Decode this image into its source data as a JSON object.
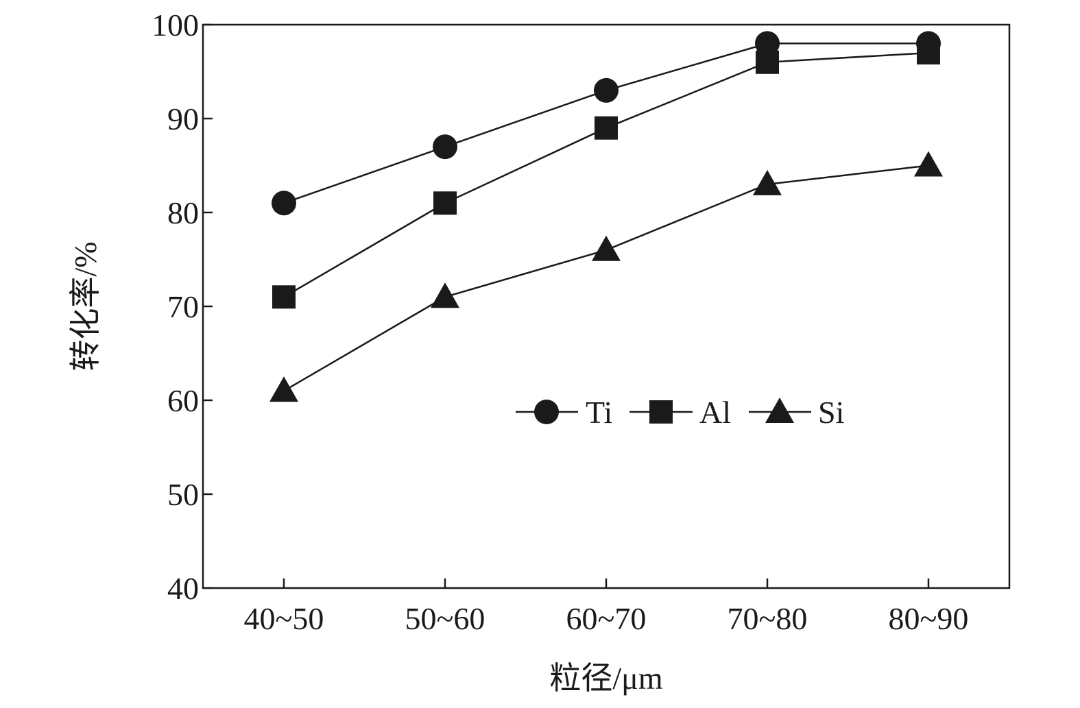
{
  "chart_data": {
    "type": "line",
    "categories": [
      "40~50",
      "50~60",
      "60~70",
      "70~80",
      "80~90"
    ],
    "series": [
      {
        "name": "Ti",
        "marker": "circle",
        "values": [
          81,
          87,
          93,
          98,
          98
        ]
      },
      {
        "name": "Al",
        "marker": "square",
        "values": [
          71,
          81,
          89,
          96,
          97
        ]
      },
      {
        "name": "Si",
        "marker": "triangle",
        "values": [
          61,
          71,
          76,
          83,
          85
        ]
      }
    ],
    "xlabel": "粒径/μm",
    "ylabel": "转化率/%",
    "ylim": [
      40,
      100
    ],
    "yticks": [
      40,
      50,
      60,
      70,
      80,
      90,
      100
    ],
    "grid": false,
    "legend_position": "lower-right inside plot",
    "colors": {
      "line": "#1a1a1a",
      "marker": "#1a1a1a",
      "axis": "#1a1a1a"
    }
  }
}
